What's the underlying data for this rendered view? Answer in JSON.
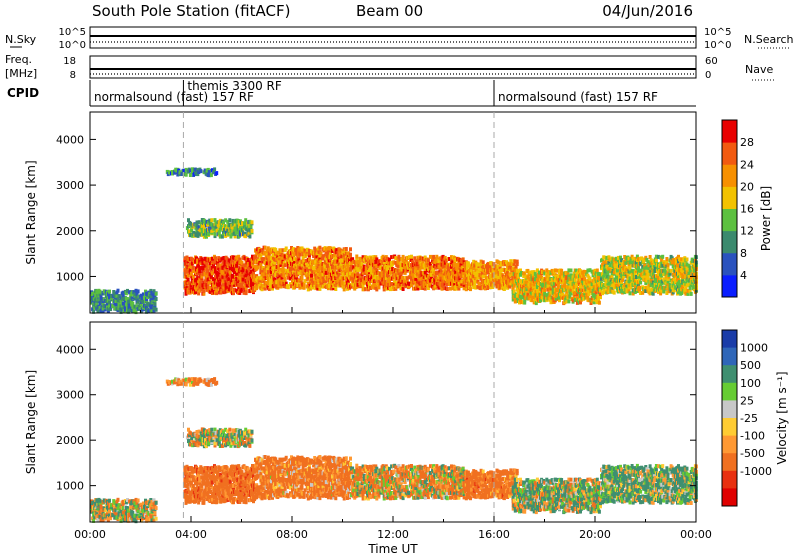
{
  "header": {
    "title": "South Pole Station (fitACF)",
    "beam": "Beam 00",
    "date": "04/Jun/2016"
  },
  "noise_panel": {
    "left_label": "N.Sky",
    "right_label": "N.Search",
    "left_ticks": [
      "10^5",
      "10^0"
    ],
    "right_ticks": [
      "10^5",
      "10^0"
    ]
  },
  "freq_panel": {
    "left_label_1": "Freq.",
    "left_label_2": "[MHz]",
    "right_label": "Nave",
    "left_ticks": [
      "18",
      "8"
    ],
    "right_ticks": [
      "60",
      "0"
    ]
  },
  "cpid_panel": {
    "label": "CPID",
    "segments": [
      {
        "label": "normalsound (fast) 157 RF",
        "start_hour": 0,
        "end_hour": 3.7
      },
      {
        "label": "themis 3300 RF",
        "start_hour": 3.7,
        "end_hour": 16.0
      },
      {
        "label": "normalsound (fast) 157 RF",
        "start_hour": 16.0,
        "end_hour": 24.0
      }
    ]
  },
  "dashed_markers_hours": [
    3.7,
    16.0
  ],
  "x_axis": {
    "label": "Time UT",
    "ticks": [
      "00:00",
      "04:00",
      "08:00",
      "12:00",
      "16:00",
      "20:00",
      "00:00"
    ]
  },
  "power_panel": {
    "ylabel": "Slant Range [km]",
    "yticks": [
      "1000",
      "2000",
      "3000",
      "4000"
    ],
    "colorbar_label": "Power [dB]",
    "colorbar_ticks": [
      "4",
      "8",
      "12",
      "16",
      "20",
      "24",
      "28"
    ],
    "colors": [
      "#0a1eff",
      "#2a52be",
      "#3b8a6e",
      "#5cc040",
      "#f2c200",
      "#f79000",
      "#f25a10",
      "#e80000"
    ]
  },
  "velocity_panel": {
    "ylabel": "Slant Range [km]",
    "yticks": [
      "1000",
      "2000",
      "3000",
      "4000"
    ],
    "colorbar_label": "Velocity [m s⁻¹]",
    "colorbar_ticks": [
      "1000",
      "500",
      "100",
      "25",
      "-25",
      "-100",
      "-500",
      "-1000"
    ],
    "colors": [
      "#1a3ca8",
      "#2f66b8",
      "#3f8f70",
      "#66cc33",
      "#c8c8c8",
      "#ffcc33",
      "#ff9933",
      "#f07020",
      "#e83010",
      "#e00000"
    ]
  },
  "chart_data": {
    "type": "heatmap",
    "title": "South Pole Station (fitACF)",
    "xlabel": "Time UT",
    "ylabel": "Slant Range [km]",
    "x_range_hours": [
      0,
      24
    ],
    "y_range_km": [
      200,
      4600
    ],
    "power_dB_range": [
      0,
      32
    ],
    "velocity_range": [
      -1200,
      1200
    ],
    "echo_regions": [
      {
        "t0": 0.0,
        "t1": 2.6,
        "r0": 300,
        "r1": 750,
        "power_dB": 10,
        "velocity": 20
      },
      {
        "t0": 3.7,
        "t1": 6.5,
        "r0": 700,
        "r1": 1500,
        "power_dB": 27,
        "velocity": -300
      },
      {
        "t0": 6.5,
        "t1": 10.3,
        "r0": 800,
        "r1": 1700,
        "power_dB": 23,
        "velocity": -220
      },
      {
        "t0": 10.3,
        "t1": 14.8,
        "r0": 800,
        "r1": 1500,
        "power_dB": 24,
        "velocity": -60
      },
      {
        "t0": 14.8,
        "t1": 16.9,
        "r0": 800,
        "r1": 1400,
        "power_dB": 22,
        "velocity": -260
      },
      {
        "t0": 16.7,
        "t1": 20.2,
        "r0": 500,
        "r1": 1200,
        "power_dB": 19,
        "velocity": 80
      },
      {
        "t0": 20.2,
        "t1": 24.0,
        "r0": 700,
        "r1": 1500,
        "power_dB": 17,
        "velocity": 150
      },
      {
        "t0": 3.8,
        "t1": 6.4,
        "r0": 1950,
        "r1": 2300,
        "power_dB": 13,
        "velocity": 10
      },
      {
        "t0": 3.0,
        "t1": 5.0,
        "r0": 3300,
        "r1": 3400,
        "power_dB": 9,
        "velocity": -200
      }
    ]
  }
}
